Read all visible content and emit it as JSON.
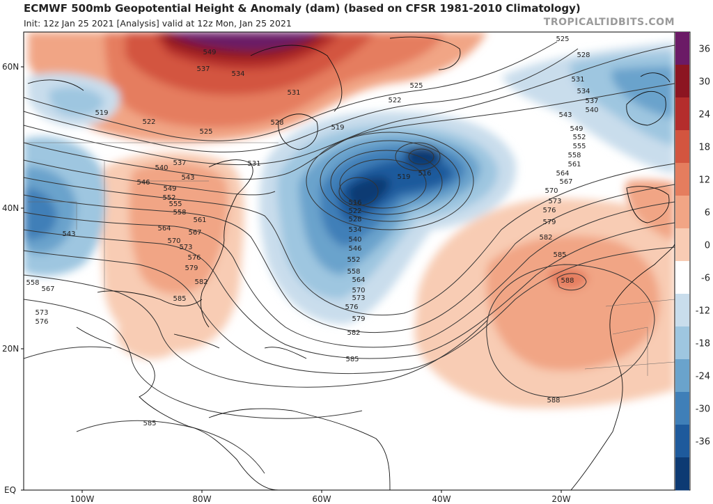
{
  "header": {
    "title": "ECMWF 500mb Geopotential Height & Anomaly (dam) (based on CFSR 1981-2010 Climatology)",
    "subtitle": "Init: 12z Jan 25 2021  [Analysis]  valid at 12z Mon, Jan 25 2021",
    "credit": "TROPICALTIDBITS.COM"
  },
  "map": {
    "lat_labels": [
      "60N",
      "40N",
      "20N",
      "EQ"
    ],
    "lon_labels": [
      "100W",
      "80W",
      "60W",
      "40W",
      "20W"
    ],
    "contour_labels": [
      "525",
      "528",
      "531",
      "534",
      "537",
      "540",
      "543",
      "546",
      "549",
      "552",
      "555",
      "558",
      "561",
      "564",
      "567",
      "570",
      "573",
      "576",
      "579",
      "582",
      "585",
      "588",
      "516",
      "519",
      "522"
    ]
  },
  "colorbar": {
    "ticks": [
      "36",
      "30",
      "24",
      "18",
      "12",
      "6",
      "0",
      "-6",
      "-12",
      "-18",
      "-24",
      "-30",
      "-36"
    ],
    "colors": [
      "#6b1a66",
      "#8c1521",
      "#b42d2c",
      "#d3553f",
      "#e57d5e",
      "#f1a585",
      "#f8ccb4",
      "#ffffff",
      "#c9ddec",
      "#9ec6e0",
      "#6aa3cc",
      "#3f7fb8",
      "#1e5a9c",
      "#0d3a73"
    ]
  }
}
